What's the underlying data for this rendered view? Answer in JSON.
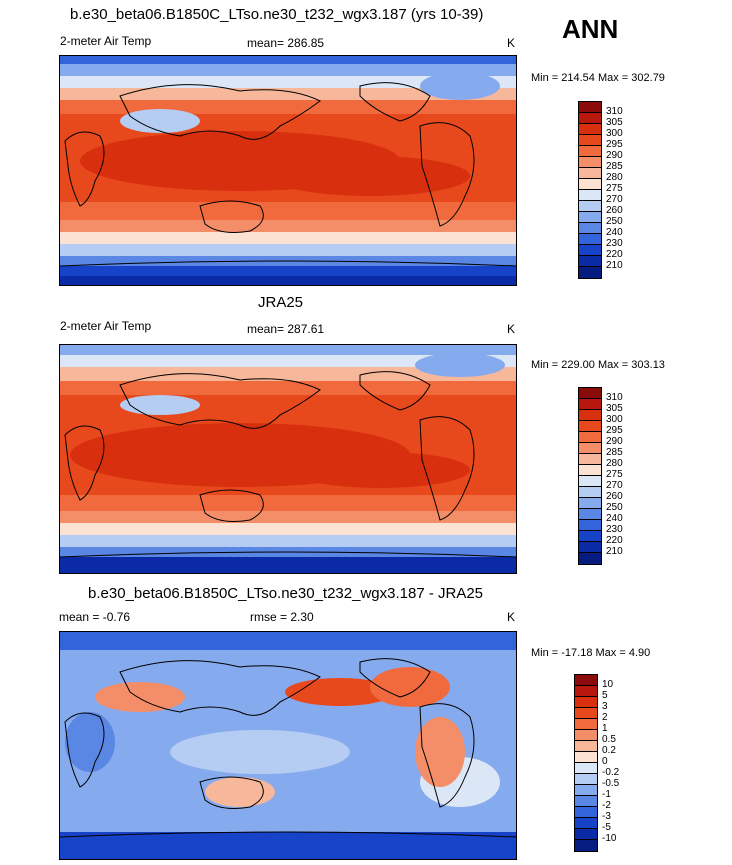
{
  "panel_top": {
    "title": "b.e30_beta06.B1850C_LTso.ne30_t232_wgx3.187 (yrs 10-39)",
    "variable": "2-meter Air Temp",
    "stat": "mean= 286.85",
    "units": "K",
    "minmax": "Min = 214.54 Max = 302.79"
  },
  "season": "ANN",
  "panel_mid": {
    "title": "JRA25",
    "variable": "2-meter Air Temp",
    "stat": "mean= 287.61",
    "units": "K",
    "minmax": "Min = 229.00 Max = 303.13"
  },
  "panel_bot": {
    "title": "b.e30_beta06.B1850C_LTso.ne30_t232_wgx3.187 - JRA25",
    "stat_mean": "mean =  -0.76",
    "stat_rmse": "rmse =   2.30",
    "units": "K",
    "minmax": "Min = -17.18 Max =   4.90"
  },
  "colorbar_abs": {
    "labels": [
      "310",
      "305",
      "300",
      "295",
      "290",
      "285",
      "280",
      "275",
      "270",
      "260",
      "250",
      "240",
      "230",
      "220",
      "210"
    ],
    "colors": [
      "#8b0a0a",
      "#b8170d",
      "#d8300f",
      "#e8491c",
      "#f06a3e",
      "#f38e68",
      "#f6b79a",
      "#fbe2d3",
      "#dbe7f7",
      "#b5cdf3",
      "#86aaee",
      "#5a86e4",
      "#3464dc",
      "#1643c8",
      "#0a2aa6",
      "#061c80"
    ]
  },
  "colorbar_diff": {
    "labels": [
      "10",
      "5",
      "3",
      "2",
      "1",
      "0.5",
      "0.2",
      "0",
      "-0.2",
      "-0.5",
      "-1",
      "-2",
      "-3",
      "-5",
      "-10"
    ],
    "colors": [
      "#8b0a0a",
      "#b8170d",
      "#d8300f",
      "#e8491c",
      "#f06a3e",
      "#f38e68",
      "#f6b79a",
      "#fbe2d3",
      "#dbe7f7",
      "#b5cdf3",
      "#86aaee",
      "#5a86e4",
      "#3464dc",
      "#1643c8",
      "#0a2aa6",
      "#061c80"
    ]
  }
}
